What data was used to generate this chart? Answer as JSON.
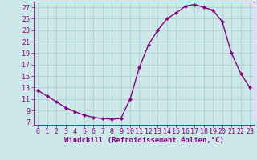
{
  "x": [
    0,
    1,
    2,
    3,
    4,
    5,
    6,
    7,
    8,
    9,
    10,
    11,
    12,
    13,
    14,
    15,
    16,
    17,
    18,
    19,
    20,
    21,
    22,
    23
  ],
  "y": [
    12.5,
    11.5,
    10.5,
    9.5,
    8.8,
    8.2,
    7.8,
    7.6,
    7.5,
    7.6,
    11.0,
    16.5,
    20.5,
    23.0,
    25.0,
    26.0,
    27.2,
    27.5,
    27.0,
    26.5,
    24.5,
    19.0,
    15.5,
    13.0
  ],
  "line_color": "#880088",
  "marker": "D",
  "marker_size": 2.0,
  "bg_color": "#cce8e8",
  "grid_color": "#aacccc",
  "xlabel": "Windchill (Refroidissement éolien,°C)",
  "xlim": [
    -0.5,
    23.5
  ],
  "ylim": [
    6.5,
    28
  ],
  "yticks": [
    7,
    9,
    11,
    13,
    15,
    17,
    19,
    21,
    23,
    25,
    27
  ],
  "xticks": [
    0,
    1,
    2,
    3,
    4,
    5,
    6,
    7,
    8,
    9,
    10,
    11,
    12,
    13,
    14,
    15,
    16,
    17,
    18,
    19,
    20,
    21,
    22,
    23
  ],
  "tick_color": "#880088",
  "font_size": 6.0,
  "xlabel_fontsize": 6.5,
  "line_width": 1.0
}
